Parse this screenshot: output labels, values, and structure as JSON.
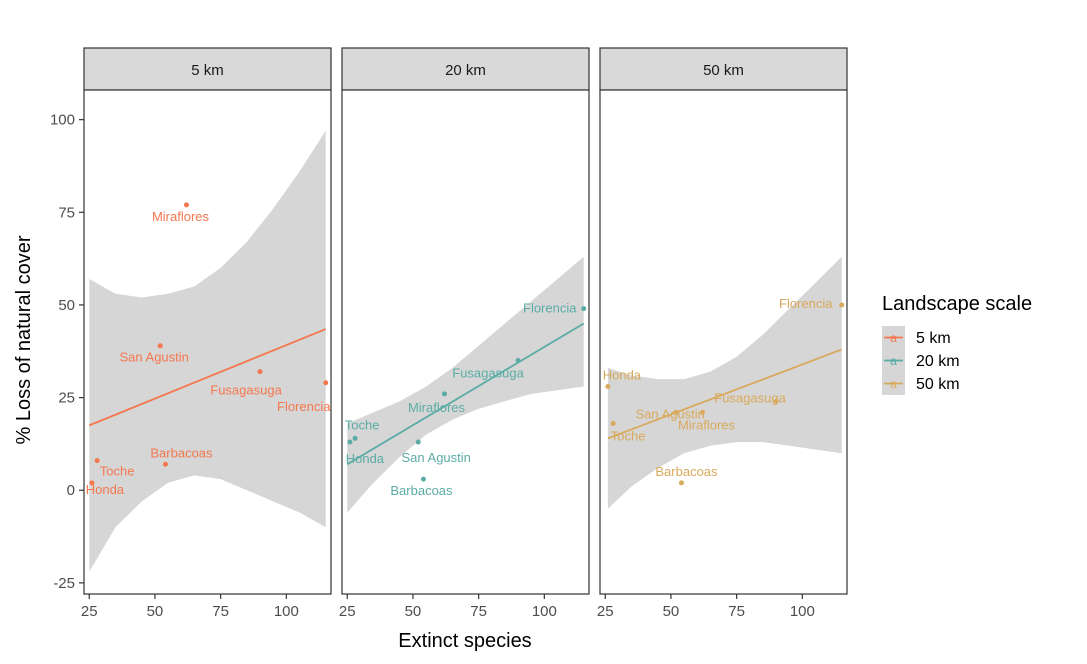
{
  "chart_data": {
    "type": "scatter",
    "xlabel": "Extinct species",
    "ylabel": "% Loss of natural cover",
    "xlim": [
      23,
      117
    ],
    "ylim": [
      -28,
      108
    ],
    "x_ticks": [
      25,
      50,
      75,
      100
    ],
    "y_ticks": [
      -25,
      0,
      25,
      50,
      75,
      100
    ],
    "x_tick_labels": [
      "25",
      "50",
      "75",
      "100"
    ],
    "y_tick_labels": [
      "-25",
      "0",
      "25",
      "50",
      "75",
      "100"
    ],
    "grid": false,
    "legend": {
      "title": "Landscape scale",
      "position": "right",
      "entries": [
        {
          "label": "5 km",
          "color": "#F4774E",
          "glyph": "a"
        },
        {
          "label": "20 km",
          "color": "#5BACA5",
          "glyph": "a"
        },
        {
          "label": "50 km",
          "color": "#D9A95C",
          "glyph": "a"
        }
      ]
    },
    "panels": [
      {
        "strip": "5 km",
        "color": "#F4774E",
        "fit": {
          "x0": 25,
          "y0": 17.5,
          "x1": 115,
          "y1": 43.5
        },
        "band": {
          "x": [
            25,
            35,
            45,
            55,
            65,
            75,
            85,
            95,
            105,
            115
          ],
          "lower": [
            -22,
            -10,
            -3,
            2,
            4,
            3,
            0,
            -3,
            -6,
            -10
          ],
          "upper": [
            57,
            53,
            52,
            53,
            55,
            60,
            67,
            76,
            86,
            97
          ]
        },
        "points": [
          {
            "name": "Miraflores",
            "x": 62,
            "y": 77
          },
          {
            "name": "San Agustin",
            "x": 52,
            "y": 39
          },
          {
            "name": "Fusagasuga",
            "x": 90,
            "y": 32
          },
          {
            "name": "Florencia",
            "x": 115,
            "y": 29
          },
          {
            "name": "Barbacoas",
            "x": 54,
            "y": 7
          },
          {
            "name": "Toche",
            "x": 28,
            "y": 8
          },
          {
            "name": "Honda",
            "x": 26,
            "y": 2
          }
        ]
      },
      {
        "strip": "20 km",
        "color": "#5BACA5",
        "fit": {
          "x0": 25,
          "y0": 7,
          "x1": 115,
          "y1": 45
        },
        "band": {
          "x": [
            25,
            35,
            45,
            55,
            65,
            75,
            85,
            95,
            105,
            115
          ],
          "lower": [
            -6,
            2,
            9,
            15,
            19,
            22,
            24,
            26,
            27,
            28
          ],
          "upper": [
            18,
            21,
            24,
            28,
            33,
            39,
            45,
            51,
            57,
            63
          ]
        },
        "points": [
          {
            "name": "Florencia",
            "x": 115,
            "y": 49
          },
          {
            "name": "Fusagasuga",
            "x": 90,
            "y": 35
          },
          {
            "name": "Miraflores",
            "x": 62,
            "y": 26
          },
          {
            "name": "Toche",
            "x": 28,
            "y": 14
          },
          {
            "name": "Honda",
            "x": 26,
            "y": 13
          },
          {
            "name": "San Agustin",
            "x": 52,
            "y": 13
          },
          {
            "name": "Barbacoas",
            "x": 54,
            "y": 3
          }
        ]
      },
      {
        "strip": "50 km",
        "color": "#D9A95C",
        "fit": {
          "x0": 26,
          "y0": 14,
          "x1": 115,
          "y1": 38
        },
        "band": {
          "x": [
            26,
            35,
            45,
            55,
            65,
            75,
            85,
            95,
            105,
            115
          ],
          "lower": [
            -5,
            1,
            6,
            10,
            12,
            13,
            13,
            12,
            11,
            10
          ],
          "upper": [
            33,
            31,
            30,
            30,
            32,
            36,
            42,
            49,
            56,
            63
          ]
        },
        "points": [
          {
            "name": "Florencia",
            "x": 115,
            "y": 50
          },
          {
            "name": "Honda",
            "x": 26,
            "y": 28
          },
          {
            "name": "San Agustin",
            "x": 52,
            "y": 21
          },
          {
            "name": "Fusagasuga",
            "x": 90,
            "y": 24
          },
          {
            "name": "Miraflores",
            "x": 62,
            "y": 21
          },
          {
            "name": "Toche",
            "x": 28,
            "y": 18
          },
          {
            "name": "Barbacoas",
            "x": 54,
            "y": 2
          }
        ]
      }
    ]
  }
}
